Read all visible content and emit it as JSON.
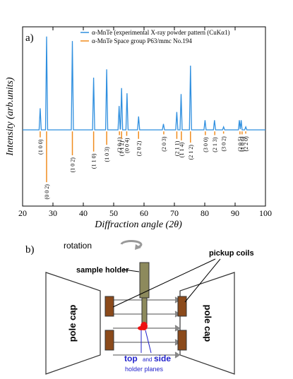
{
  "chart_data": {
    "type": "line",
    "panel_label": "a)",
    "xlabel": "Diffraction angle (2θ)",
    "ylabel": "Intensity (arb.units)",
    "xlim": [
      20,
      100
    ],
    "xticks": [
      20,
      30,
      40,
      50,
      60,
      70,
      80,
      90,
      100
    ],
    "ylim": [
      -1.0,
      1.4
    ],
    "series": [
      {
        "name": "α-MnTe (experimental  X-ray powder pattern  (CuKα1)",
        "color": "#2f8fdf",
        "type": "line",
        "x": [
          20,
          25.45,
          25.8,
          26.15,
          27.55,
          27.9,
          28.25,
          36.05,
          36.4,
          36.75,
          43.05,
          43.4,
          43.75,
          47.35,
          47.7,
          48.05,
          51.45,
          51.8,
          52.15,
          52.25,
          52.6,
          52.95,
          54.05,
          54.4,
          54.75,
          57.85,
          58.2,
          58.55,
          66.05,
          66.4,
          66.75,
          70.45,
          70.8,
          71.15,
          71.85,
          72.2,
          72.55,
          74.95,
          75.3,
          75.65,
          79.75,
          80.1,
          80.45,
          82.85,
          83.2,
          83.55,
          85.85,
          86.2,
          86.55,
          91.1,
          91.4,
          91.7,
          92.0,
          92.3,
          93.15,
          93.5,
          93.85,
          100
        ],
        "values": [
          0.02,
          0.02,
          0.31,
          0.02,
          0.02,
          1.27,
          0.02,
          0.02,
          1.21,
          0.02,
          0.02,
          0.72,
          0.02,
          0.02,
          0.83,
          0.02,
          0.02,
          0.34,
          0.03,
          0.03,
          0.58,
          0.02,
          0.02,
          0.51,
          0.02,
          0.02,
          0.2,
          0.02,
          0.02,
          0.1,
          0.02,
          0.02,
          0.26,
          0.02,
          0.02,
          0.5,
          0.02,
          0.02,
          0.88,
          0.02,
          0.02,
          0.15,
          0.02,
          0.02,
          0.15,
          0.02,
          0.02,
          0.06,
          0.02,
          0.02,
          0.15,
          0.03,
          0.15,
          0.02,
          0.02,
          0.06,
          0.02,
          0.02
        ]
      },
      {
        "name": "α-MnTe Space group  P63/mmc  No.194",
        "color": "#f08c1e",
        "type": "stem",
        "x": [
          25.8,
          27.9,
          36.4,
          43.4,
          47.7,
          51.9,
          52.6,
          54.3,
          58.2,
          66.5,
          70.8,
          72.3,
          75.3,
          80.2,
          83.3,
          86.2,
          91.6,
          92.3,
          93.5
        ],
        "values": [
          -0.08,
          -0.68,
          -0.32,
          -0.27,
          -0.18,
          -0.05,
          -0.1,
          -0.06,
          -0.1,
          -0.04,
          -0.1,
          -0.12,
          -0.15,
          -0.05,
          -0.05,
          -0.03,
          -0.04,
          -0.04,
          -0.03
        ],
        "labels": [
          "(1 0 0)",
          "(0 0 2)",
          "(1 0 2)",
          "(1 1 0)",
          "(1 0 3)",
          "(2 0 1)",
          "(1 1 2)",
          "(0 0 4)",
          "(2 0 2)",
          "(2 0 3)",
          "(2 1 1)",
          "(1 1 4)",
          "(2 1 2)",
          "(3 0 0)",
          "(2 1 3)",
          "(3 0 2)",
          "(2 0 5)",
          "(1 0 6)",
          "(2 2 0)"
        ]
      }
    ]
  },
  "diagram": {
    "panel_label": "b)",
    "rotation": "rotation",
    "sample_holder": "sample holder",
    "pickup_coils": "pickup coils",
    "pole_cap_left": "pole cap",
    "pole_cap_right": "pole cap",
    "top": "top",
    "and": "and",
    "side": "side",
    "holder_planes": "holder planes"
  }
}
